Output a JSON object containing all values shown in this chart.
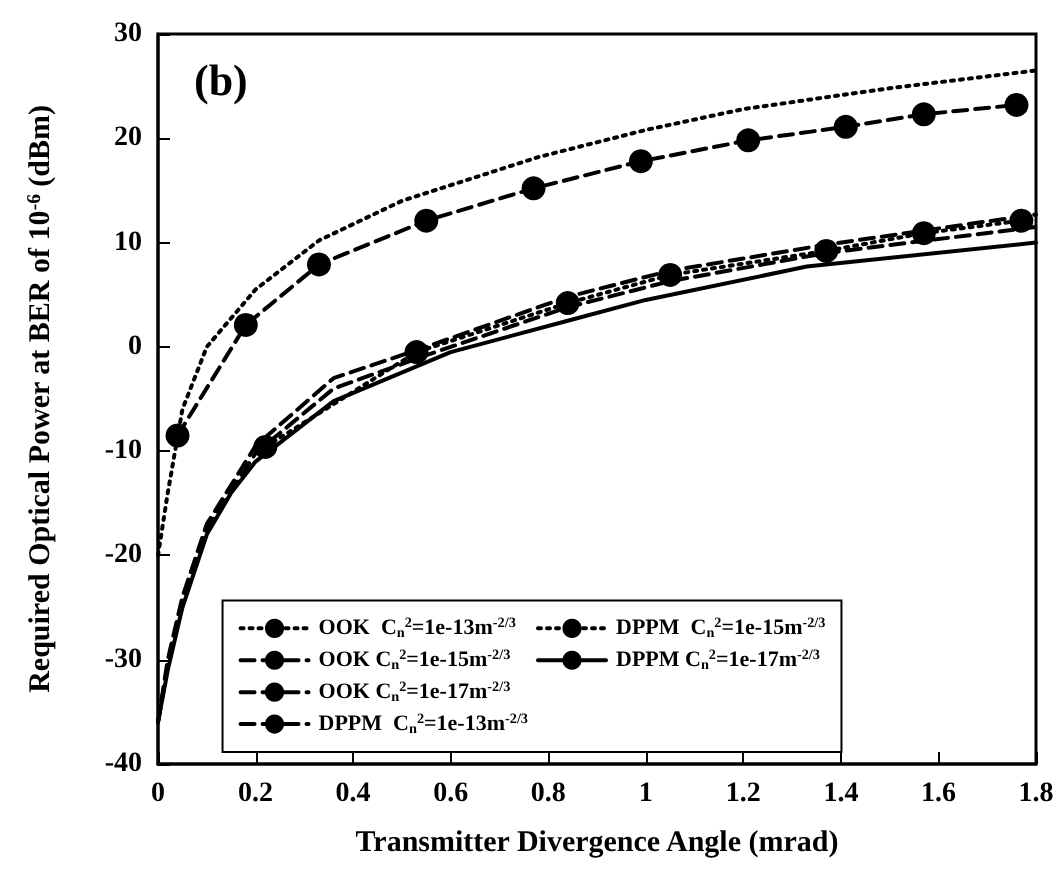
{
  "chart_data": {
    "type": "line",
    "title": "(b)",
    "xlabel": "Transmitter Divergence Angle (mrad)",
    "ylabel": "Required Optical Power at BER of 10$^{-6}$ (dBm)",
    "xlim": [
      0,
      1.8
    ],
    "xticks": [
      0,
      0.2,
      0.4,
      0.6,
      0.8,
      1,
      1.2,
      1.4,
      1.6,
      1.8
    ],
    "ylim": [
      -40,
      30
    ],
    "yticks": [
      -40,
      -30,
      -20,
      -10,
      0,
      10,
      20,
      30
    ],
    "grid": false,
    "legend": "bottom",
    "series": [
      {
        "name": "OOK  C$_{n}$$^{2}$=1e-13m$^{-2/3}$",
        "color": "#000000",
        "line_style": "dotted",
        "marker": "none",
        "x": [
          0,
          0.02,
          0.05,
          0.1,
          0.2,
          0.33,
          0.5,
          0.78,
          1.0,
          1.2,
          1.5,
          1.8
        ],
        "values": [
          -20,
          -14,
          -6,
          0,
          5.5,
          10.2,
          14,
          18.2,
          20.8,
          22.8,
          24.8,
          26.5
        ]
      },
      {
        "name": "OOK C$_{n}$$^{2}$=1e-15m$^{-2/3}$",
        "color": "#000000",
        "line_style": "dashed",
        "marker": "none",
        "x": [
          0,
          0.02,
          0.05,
          0.1,
          0.2,
          0.36,
          0.55,
          0.84,
          1.05,
          1.37,
          1.8
        ],
        "values": [
          -36,
          -30,
          -24,
          -17,
          -9.5,
          -3,
          0,
          4.8,
          7.3,
          9.8,
          12.7
        ]
      },
      {
        "name": "OOK C$_{n}$$^{2}$=1e-17m$^{-2/3}$",
        "color": "#000000",
        "line_style": "dashed",
        "marker": "none",
        "x": [
          0,
          0.02,
          0.05,
          0.1,
          0.2,
          0.36,
          0.55,
          0.84,
          1.05,
          1.37,
          1.8
        ],
        "values": [
          -36,
          -30.5,
          -24.5,
          -17.5,
          -10.2,
          -4,
          -0.8,
          3.8,
          6.3,
          9,
          11.5
        ]
      },
      {
        "name": "DPPM  C$_{n}$$^{2}$=1e-13m$^{-2/3}$",
        "color": "#000000",
        "line_style": "dashed",
        "marker": "circle",
        "x": [
          0.04,
          0.18,
          0.33,
          0.55,
          0.77,
          0.99,
          1.21,
          1.41,
          1.57,
          1.76
        ],
        "values": [
          -8.5,
          2.1,
          7.9,
          12.1,
          15.2,
          17.8,
          19.8,
          21.1,
          22.3,
          23.2
        ]
      },
      {
        "name": "DPPM  C$_{n}$$^{2}$=1e-15m$^{-2/3}$",
        "color": "#000000",
        "line_style": "dotted",
        "marker": "circle",
        "x": [
          0.22,
          0.53,
          0.84,
          1.05,
          1.37,
          1.57,
          1.77
        ],
        "values": [
          -9.6,
          -0.5,
          4.2,
          6.9,
          9.2,
          10.9,
          12.1
        ]
      },
      {
        "name": "DPPM C$_{n}$$^{2}$=1e-17m$^{-2/3}$",
        "color": "#000000",
        "line_style": "solid",
        "marker": "none",
        "x": [
          0,
          0.02,
          0.05,
          0.1,
          0.15,
          0.2,
          0.36,
          0.6,
          0.84,
          1.0,
          1.33,
          1.8
        ],
        "values": [
          -36,
          -31,
          -25,
          -18,
          -14,
          -11,
          -5.2,
          -0.5,
          2.5,
          4.5,
          7.7,
          10
        ]
      }
    ]
  }
}
